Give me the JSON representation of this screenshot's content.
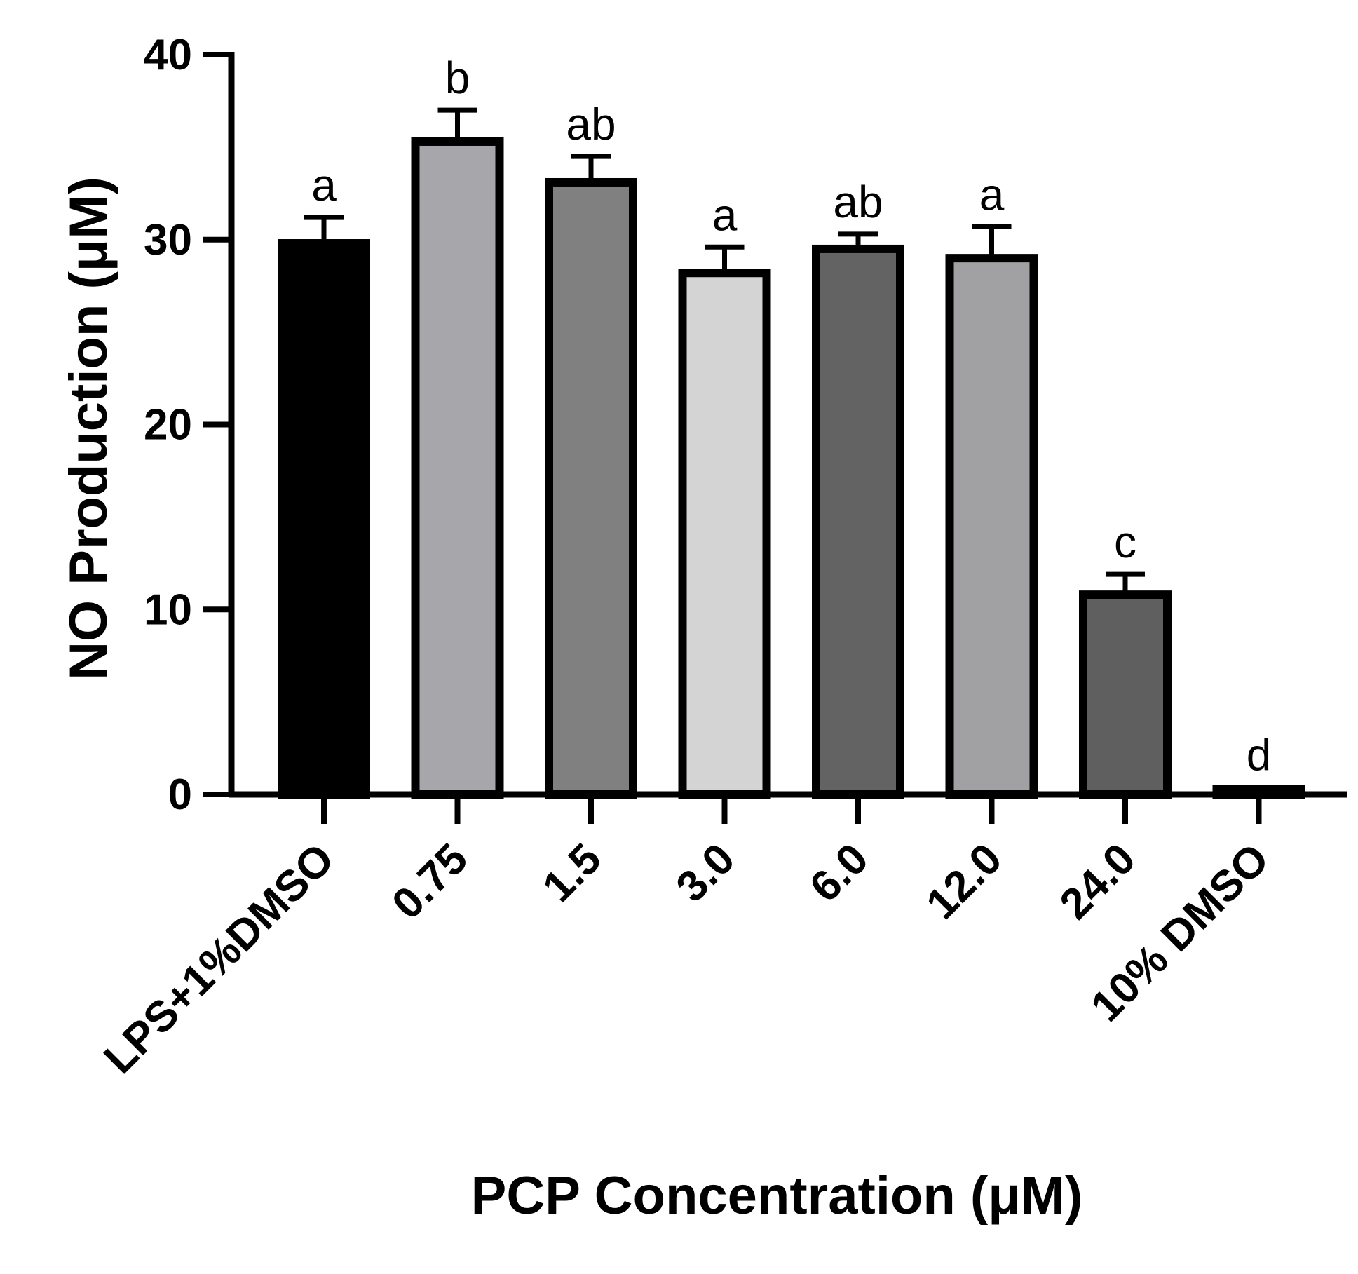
{
  "chart_data": {
    "type": "bar",
    "title": "",
    "xlabel": "PCP Concentration (μM)",
    "ylabel": "NO Production (μM)",
    "ylim": [
      0,
      40
    ],
    "yticks": [
      0,
      10,
      20,
      30,
      40
    ],
    "ytick_labels": [
      "0",
      "10",
      "20",
      "30",
      "40"
    ],
    "categories": [
      "LPS+1%DMSO",
      "0.75",
      "1.5",
      "3.0",
      "6.0",
      "12.0",
      "24.0",
      "10% DMSO"
    ],
    "values": [
      29.8,
      35.3,
      33.1,
      28.2,
      29.5,
      29.0,
      10.8,
      0.3
    ],
    "error_upper": [
      1.4,
      1.7,
      1.4,
      1.4,
      0.8,
      1.7,
      1.1,
      0.1
    ],
    "significance_labels": [
      "a",
      "b",
      "ab",
      "a",
      "ab",
      "a",
      "c",
      "d"
    ],
    "bar_colors": [
      "#000000",
      "#a7a7ab",
      "#808080",
      "#d4d4d4",
      "#636363",
      "#a1a1a3",
      "#5f5f5f",
      "#5e5e5e"
    ],
    "bar_edge_color": "#000000",
    "grid": false,
    "legend": "none"
  }
}
